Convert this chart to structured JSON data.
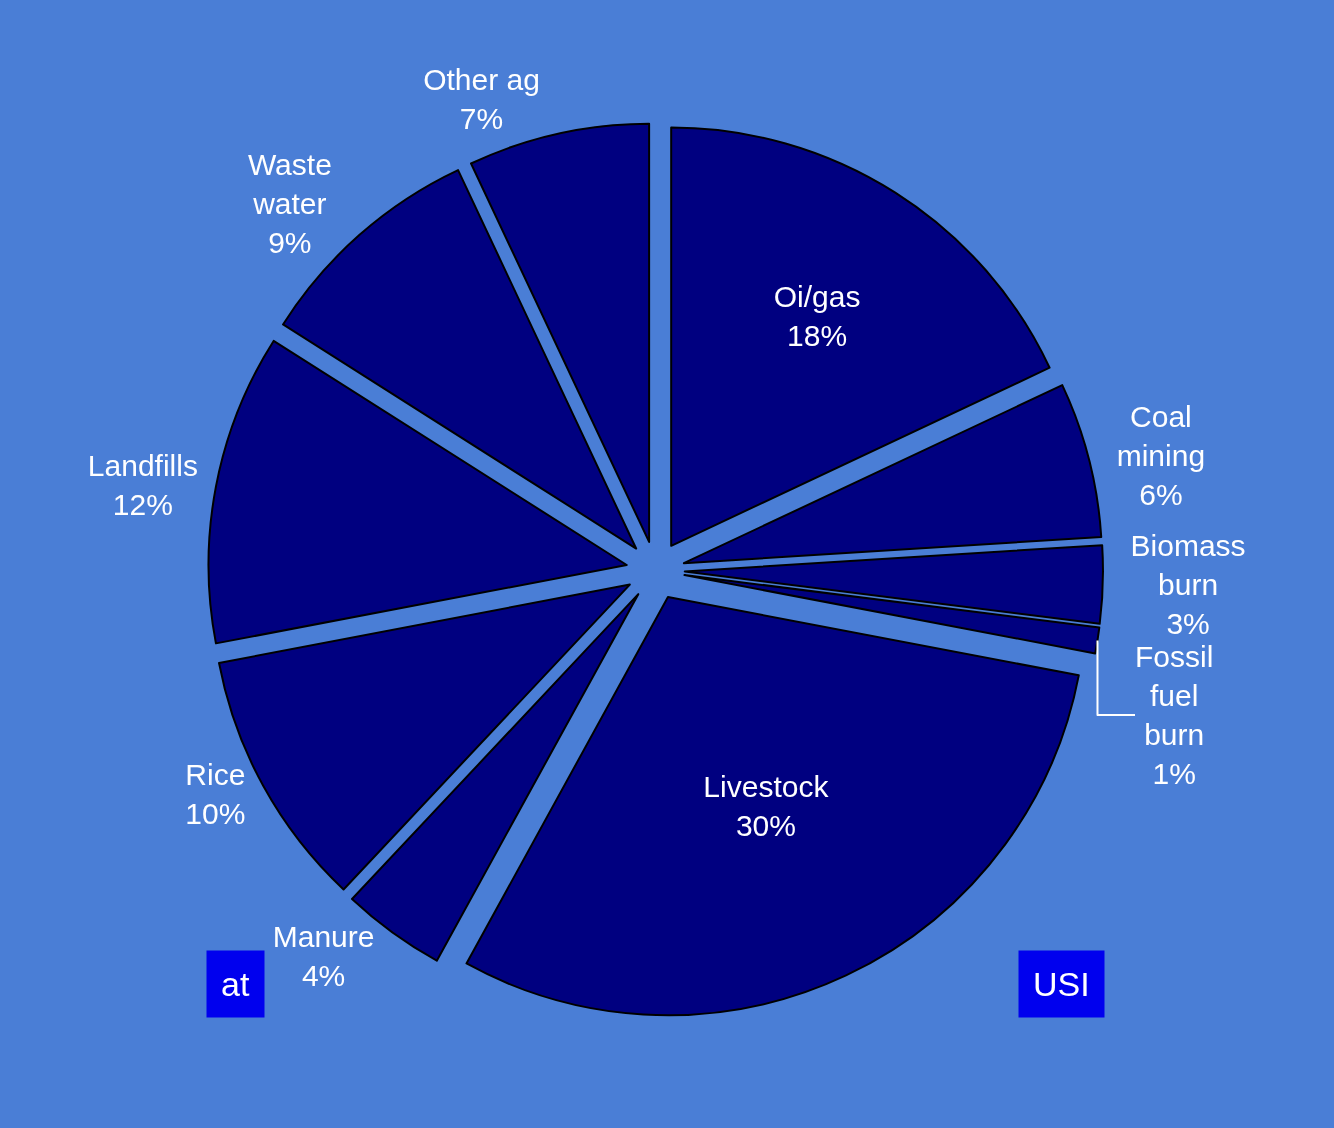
{
  "chart_data": {
    "type": "pie",
    "categories": [
      "Oi/gas",
      "Coal mining",
      "Biomass burn",
      "Fossil fuel burn",
      "Livestock",
      "Manure",
      "Rice",
      "Landfills",
      "Waste water",
      "Other ag"
    ],
    "values": [
      18,
      6,
      3,
      1,
      30,
      4,
      10,
      12,
      9,
      7
    ],
    "value_labels": [
      "18%",
      "6%",
      "3%",
      "1%",
      "30%",
      "4%",
      "10%",
      "12%",
      "9%",
      "7%"
    ],
    "colors": [
      "#000080",
      "#000080",
      "#000080",
      "#000080",
      "#000080",
      "#000080",
      "#000080",
      "#000080",
      "#000080",
      "#000080"
    ],
    "legend": false,
    "annotations": [
      "at",
      "USI"
    ]
  }
}
